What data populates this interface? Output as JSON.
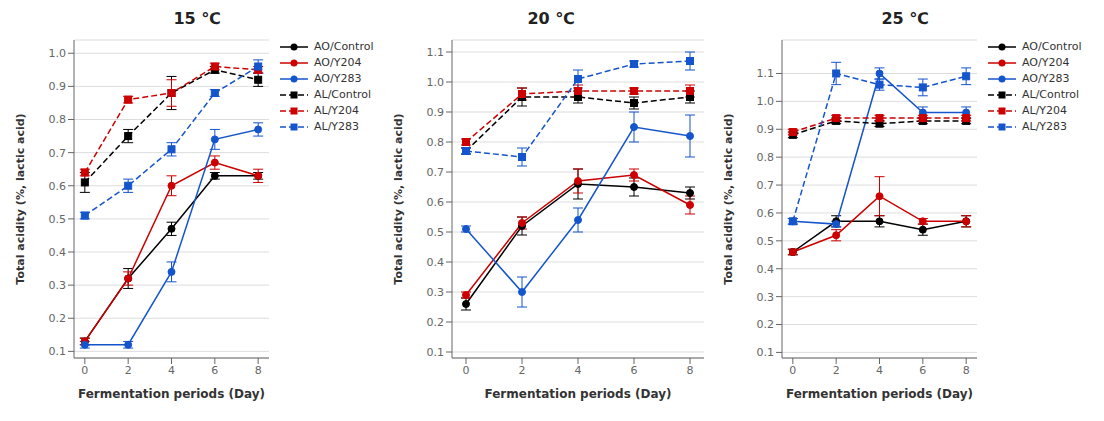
{
  "chart_data": [
    {
      "type": "line",
      "title": "15 ℃",
      "xlabel": "Fermentation periods (Day)",
      "ylabel": "Total acidity (%, lactic acid)",
      "x": [
        0,
        2,
        4,
        6,
        8
      ],
      "xlim": [
        -0.5,
        8.5
      ],
      "xticks": [
        0,
        2,
        4,
        6,
        8
      ],
      "ylim": [
        0.08,
        1.04
      ],
      "yticks": [
        0.1,
        0.2,
        0.3,
        0.4,
        0.5,
        0.6,
        0.7,
        0.8,
        0.9,
        {
          "value": 1.0,
          "label": "1.0"
        }
      ],
      "grid": "y",
      "legend": "right",
      "series": [
        {
          "name": "AO/Control",
          "color": "#000000",
          "line_style": "solid",
          "marker": "circle",
          "values": [
            0.13,
            0.32,
            0.47,
            0.63,
            0.63
          ],
          "errors": [
            0.01,
            0.03,
            0.02,
            0.01,
            0.01
          ]
        },
        {
          "name": "AO/Y204",
          "color": "#cc0000",
          "line_style": "solid",
          "marker": "circle",
          "values": [
            0.13,
            0.32,
            0.6,
            0.67,
            0.63
          ],
          "errors": [
            0.01,
            0.02,
            0.03,
            0.02,
            0.02
          ]
        },
        {
          "name": "AO/Y283",
          "color": "#1555cc",
          "line_style": "solid",
          "marker": "circle",
          "values": [
            0.12,
            0.12,
            0.34,
            0.74,
            0.77
          ],
          "errors": [
            0.01,
            0.01,
            0.03,
            0.03,
            0.02
          ]
        },
        {
          "name": "AL/Control",
          "color": "#000000",
          "line_style": "dashed",
          "marker": "square",
          "values": [
            0.61,
            0.75,
            0.88,
            0.95,
            0.92
          ],
          "errors": [
            0.03,
            0.02,
            0.05,
            0.01,
            0.02
          ]
        },
        {
          "name": "AL/Y204",
          "color": "#cc0000",
          "line_style": "dashed",
          "marker": "square",
          "values": [
            0.64,
            0.86,
            0.88,
            0.96,
            0.95
          ],
          "errors": [
            0.01,
            0.01,
            0.04,
            0.01,
            0.01
          ]
        },
        {
          "name": "AL/Y283",
          "color": "#1555cc",
          "line_style": "dashed",
          "marker": "square",
          "values": [
            0.51,
            0.6,
            0.71,
            0.88,
            0.96
          ],
          "errors": [
            0.01,
            0.02,
            0.02,
            0.01,
            0.02
          ]
        }
      ]
    },
    {
      "type": "line",
      "title": "20 ℃",
      "xlabel": "Fermentation periods (Day)",
      "ylabel": "Total acidity (%, lactic acid)",
      "x": [
        0,
        2,
        4,
        6,
        8
      ],
      "xlim": [
        -0.5,
        8.5
      ],
      "xticks": [
        0,
        2,
        4,
        6,
        8
      ],
      "ylim": [
        0.08,
        1.14
      ],
      "yticks": [
        0.1,
        0.2,
        0.3,
        0.4,
        0.5,
        0.6,
        0.7,
        0.8,
        0.9,
        {
          "value": 1.0,
          "label": "1.0"
        },
        1.1
      ],
      "grid": "y",
      "series": [
        {
          "name": "AO/Control",
          "color": "#000000",
          "line_style": "solid",
          "marker": "circle",
          "values": [
            0.26,
            0.52,
            0.66,
            0.65,
            0.63
          ],
          "errors": [
            0.02,
            0.03,
            0.05,
            0.03,
            0.02
          ]
        },
        {
          "name": "AO/Y204",
          "color": "#cc0000",
          "line_style": "solid",
          "marker": "circle",
          "values": [
            0.29,
            0.53,
            0.67,
            0.69,
            0.59
          ],
          "errors": [
            0.01,
            0.02,
            0.04,
            0.02,
            0.03
          ]
        },
        {
          "name": "AO/Y283",
          "color": "#1555cc",
          "line_style": "solid",
          "marker": "circle",
          "values": [
            0.51,
            0.3,
            0.54,
            0.85,
            0.82
          ],
          "errors": [
            0.01,
            0.05,
            0.04,
            0.05,
            0.07
          ]
        },
        {
          "name": "AL/Control",
          "color": "#000000",
          "line_style": "dashed",
          "marker": "square",
          "values": [
            0.77,
            0.95,
            0.95,
            0.93,
            0.95
          ],
          "errors": [
            0.01,
            0.03,
            0.02,
            0.02,
            0.02
          ]
        },
        {
          "name": "AL/Y204",
          "color": "#cc0000",
          "line_style": "dashed",
          "marker": "square",
          "values": [
            0.8,
            0.96,
            0.97,
            0.97,
            0.97
          ],
          "errors": [
            0.01,
            0.02,
            0.02,
            0.01,
            0.02
          ]
        },
        {
          "name": "AL/Y283",
          "color": "#1555cc",
          "line_style": "dashed",
          "marker": "square",
          "values": [
            0.77,
            0.75,
            1.01,
            1.06,
            1.07
          ],
          "errors": [
            0.01,
            0.03,
            0.03,
            0.01,
            0.03
          ]
        }
      ]
    },
    {
      "type": "line",
      "title": "25 ℃",
      "xlabel": "Fermentation periods (Day)",
      "ylabel": "Total acidity (%, lactic acid)",
      "x": [
        0,
        2,
        4,
        6,
        8
      ],
      "xlim": [
        -0.5,
        8.5
      ],
      "xticks": [
        0,
        2,
        4,
        6,
        8
      ],
      "ylim": [
        0.08,
        1.22
      ],
      "yticks": [
        0.1,
        0.2,
        0.3,
        0.4,
        0.5,
        0.6,
        0.7,
        0.8,
        0.9,
        {
          "value": 1.0,
          "label": "1.0"
        },
        1.1
      ],
      "grid": "y",
      "legend": "right",
      "series": [
        {
          "name": "AO/Control",
          "color": "#000000",
          "line_style": "solid",
          "marker": "circle",
          "values": [
            0.46,
            0.57,
            0.57,
            0.54,
            0.57
          ],
          "errors": [
            0.01,
            0.02,
            0.02,
            0.02,
            0.02
          ]
        },
        {
          "name": "AO/Y204",
          "color": "#cc0000",
          "line_style": "solid",
          "marker": "circle",
          "values": [
            0.46,
            0.52,
            0.66,
            0.57,
            0.57
          ],
          "errors": [
            0.01,
            0.02,
            0.07,
            0.01,
            0.02
          ]
        },
        {
          "name": "AO/Y283",
          "color": "#1555cc",
          "line_style": "solid",
          "marker": "circle",
          "values": [
            0.57,
            0.56,
            1.1,
            0.96,
            0.96
          ],
          "errors": [
            0.01,
            0.01,
            0.02,
            0.02,
            0.02
          ]
        },
        {
          "name": "AL/Control",
          "color": "#000000",
          "line_style": "dashed",
          "marker": "square",
          "values": [
            0.88,
            0.93,
            0.92,
            0.93,
            0.93
          ],
          "errors": [
            0.01,
            0.01,
            0.01,
            0.01,
            0.01
          ]
        },
        {
          "name": "AL/Y204",
          "color": "#cc0000",
          "line_style": "dashed",
          "marker": "square",
          "values": [
            0.89,
            0.94,
            0.94,
            0.94,
            0.94
          ],
          "errors": [
            0.01,
            0.01,
            0.01,
            0.01,
            0.01
          ]
        },
        {
          "name": "AL/Y283",
          "color": "#1555cc",
          "line_style": "dashed",
          "marker": "square",
          "values": [
            0.57,
            1.1,
            1.06,
            1.05,
            1.09
          ],
          "errors": [
            0.01,
            0.04,
            0.02,
            0.03,
            0.03
          ]
        }
      ]
    }
  ]
}
